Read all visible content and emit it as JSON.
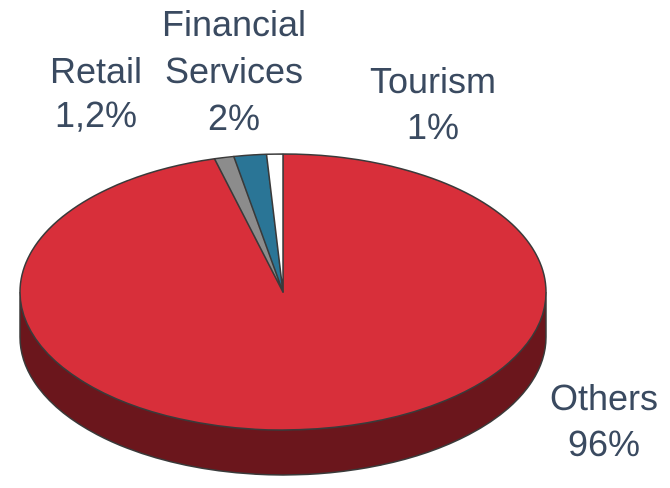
{
  "chart_data": {
    "type": "pie",
    "style": "3d",
    "title": "",
    "slices": [
      {
        "name": "Others",
        "value": 96,
        "value_label": "96%",
        "color": "#d82f3a",
        "side_color": "#6b161c"
      },
      {
        "name": "Retail",
        "value": 1.2,
        "value_label": "1,2%",
        "color": "#8c8c8c",
        "side_color": "#4a4a4a"
      },
      {
        "name": "Financial Services",
        "value": 2,
        "value_label": "2%",
        "color": "#2a7596",
        "side_color": "#163f52"
      },
      {
        "name": "Tourism",
        "value": 1,
        "value_label": "1%",
        "color": "#ffffff",
        "side_color": "#cccccc"
      }
    ],
    "labels": {
      "others": {
        "name": "Others",
        "value": "96%"
      },
      "retail": {
        "name": "Retail",
        "value": "1,2%"
      },
      "financial": {
        "name_line1": "Financial",
        "name_line2": "Services",
        "value": "2%"
      },
      "tourism": {
        "name": "Tourism",
        "value": "1%"
      }
    }
  }
}
